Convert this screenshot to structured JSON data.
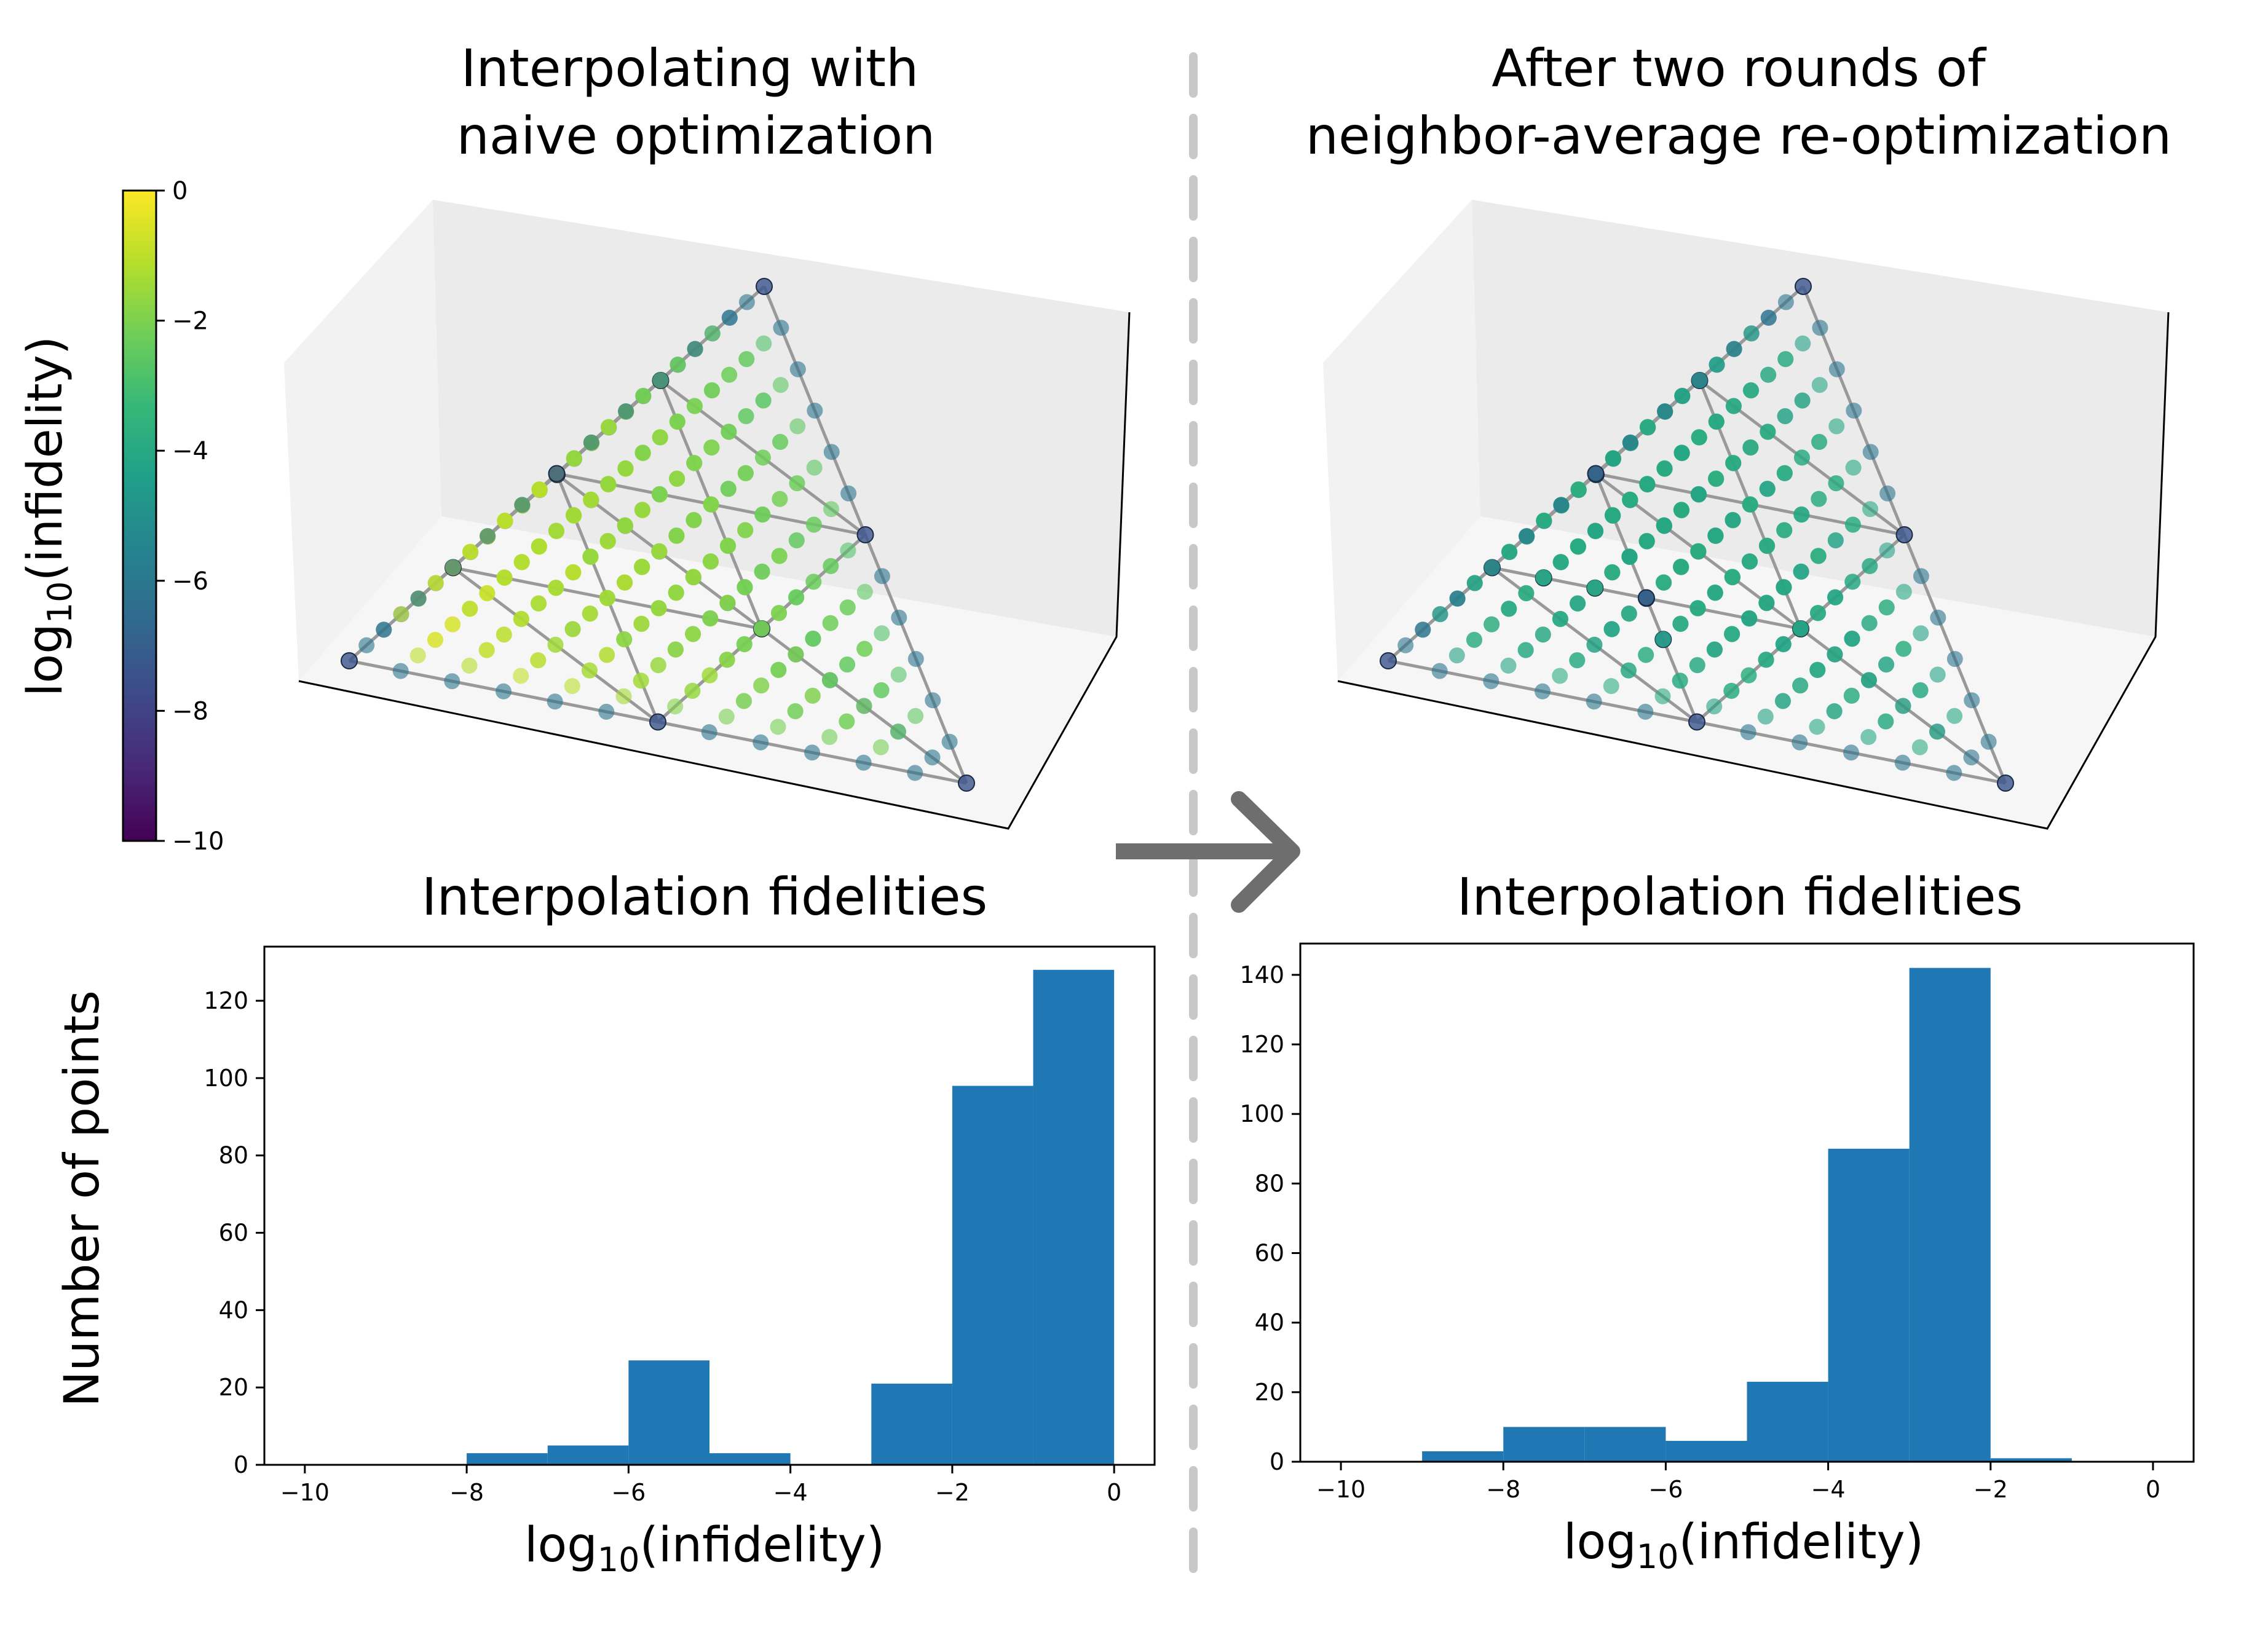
{
  "panels": {
    "left_title_line1": "Interpolating with",
    "left_title_line2": "naive optimization",
    "right_title_line1": "After two rounds of",
    "right_title_line2": "neighbor-average re-optimization"
  },
  "colorbar": {
    "label_prefix": "log",
    "label_sub": "10",
    "label_suffix": "(infidelity)",
    "ticks": [
      "0",
      "−2",
      "−4",
      "−6",
      "−8",
      "−10"
    ],
    "tick_values": [
      0,
      -2,
      -4,
      -6,
      -8,
      -10
    ],
    "range": [
      -10,
      0
    ],
    "colormap": "viridis",
    "stops": [
      "#440154",
      "#482878",
      "#3e4989",
      "#31688e",
      "#26828e",
      "#1f9e89",
      "#35b779",
      "#6ece58",
      "#b5de2b",
      "#fde725"
    ]
  },
  "shared_ylabel": "Number of points",
  "chart_data": [
    {
      "type": "bar",
      "title": "Interpolation fidelities",
      "xlabel_prefix": "log",
      "xlabel_sub": "10",
      "xlabel_suffix": "(infidelity)",
      "ylabel": "Number of points",
      "bin_edges": [
        -10,
        -9,
        -8,
        -7,
        -6,
        -5,
        -4,
        -3,
        -2,
        -1,
        0
      ],
      "values": [
        0,
        0,
        3,
        5,
        27,
        3,
        0,
        21,
        98,
        128
      ],
      "xlim": [
        -10.5,
        0.5
      ],
      "ylim": [
        0,
        134
      ],
      "xticks": [
        -10,
        -8,
        -6,
        -4,
        -2,
        0
      ],
      "xtick_labels": [
        "−10",
        "−8",
        "−6",
        "−4",
        "−2",
        "0"
      ],
      "yticks": [
        0,
        20,
        40,
        60,
        80,
        100,
        120
      ],
      "ytick_labels": [
        "0",
        "20",
        "40",
        "60",
        "80",
        "100",
        "120"
      ],
      "bar_color": "#1f77b4",
      "grid": false
    },
    {
      "type": "bar",
      "title": "Interpolation fidelities",
      "xlabel_prefix": "log",
      "xlabel_sub": "10",
      "xlabel_suffix": "(infidelity)",
      "ylabel": "",
      "bin_edges": [
        -10,
        -9,
        -8,
        -7,
        -6,
        -5,
        -4,
        -3,
        -2,
        -1,
        0
      ],
      "values": [
        0,
        3,
        10,
        10,
        6,
        23,
        90,
        142,
        1,
        0
      ],
      "xlim": [
        -10.5,
        0.5
      ],
      "ylim": [
        0,
        149
      ],
      "xticks": [
        -10,
        -8,
        -6,
        -4,
        -2,
        0
      ],
      "xtick_labels": [
        "−10",
        "−8",
        "−6",
        "−4",
        "−2",
        "0"
      ],
      "yticks": [
        0,
        20,
        40,
        60,
        80,
        100,
        120,
        140
      ],
      "ytick_labels": [
        "0",
        "20",
        "40",
        "60",
        "80",
        "100",
        "120",
        "140"
      ],
      "bar_color": "#1f77b4",
      "grid": false
    }
  ],
  "scatter3d": {
    "grid_divisions": 12,
    "vertex_color": "#31688e",
    "edge_color": "#999999",
    "left": {
      "low": -7.5,
      "high": -0.2,
      "dark_nodes": []
    },
    "right": {
      "low": -7.5,
      "high": -2.8,
      "dark_nodes": [
        [
          6,
          0,
          6,
          0
        ],
        [
          5,
          1,
          6,
          0
        ],
        [
          4,
          2,
          6,
          0
        ],
        [
          3,
          3,
          6,
          0
        ],
        [
          6,
          3,
          0,
          3
        ],
        [
          4,
          4,
          4,
          0
        ]
      ]
    }
  },
  "divider": {
    "color": "#c8c8c8",
    "style": "dashed"
  },
  "arrow": {
    "color": "#6e6e6e"
  }
}
